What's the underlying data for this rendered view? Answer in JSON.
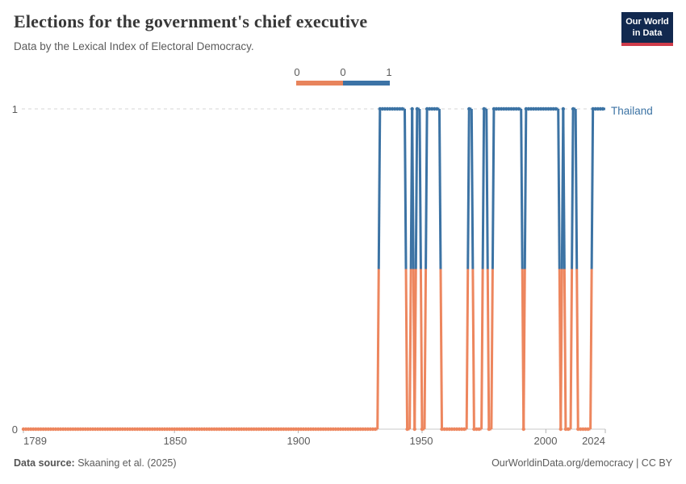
{
  "header": {
    "title": "Elections for the government's chief executive",
    "subtitle": "Data by the Lexical Index of Electoral Democracy.",
    "logo_line1": "Our World",
    "logo_line2": "in Data"
  },
  "legend": {
    "labels": [
      "0",
      "0",
      "1"
    ],
    "low_color": "#e8845c",
    "high_color": "#3c73a6"
  },
  "chart_data": {
    "type": "line",
    "subtype": "step-binary",
    "entity": "Thailand",
    "entity_color": "#3c73a4",
    "x_range": [
      1789,
      2024
    ],
    "ylim": [
      0,
      1
    ],
    "y_tick_labels": [
      "1",
      "0"
    ],
    "x_ticks": [
      1789,
      1850,
      1900,
      1950,
      2000,
      2024
    ],
    "x_tick_labels": [
      "1789",
      "1850",
      "1900",
      "1950",
      "2000",
      "2024"
    ],
    "colors": {
      "value0": "#ed865e",
      "value1": "#3c73a4"
    },
    "grid": "dashed-line-at-1",
    "legend_position": "top-center",
    "periods": [
      {
        "start": 1789,
        "end": 1932,
        "value": 0
      },
      {
        "start": 1933,
        "end": 1943,
        "value": 1
      },
      {
        "start": 1944,
        "end": 1945,
        "value": 0
      },
      {
        "start": 1946,
        "end": 1946,
        "value": 1
      },
      {
        "start": 1947,
        "end": 1947,
        "value": 0
      },
      {
        "start": 1948,
        "end": 1949,
        "value": 1
      },
      {
        "start": 1950,
        "end": 1951,
        "value": 0
      },
      {
        "start": 1952,
        "end": 1957,
        "value": 1
      },
      {
        "start": 1958,
        "end": 1968,
        "value": 0
      },
      {
        "start": 1969,
        "end": 1970,
        "value": 1
      },
      {
        "start": 1971,
        "end": 1974,
        "value": 0
      },
      {
        "start": 1975,
        "end": 1976,
        "value": 1
      },
      {
        "start": 1977,
        "end": 1978,
        "value": 0
      },
      {
        "start": 1979,
        "end": 1990,
        "value": 1
      },
      {
        "start": 1991,
        "end": 1991,
        "value": 0
      },
      {
        "start": 1992,
        "end": 2005,
        "value": 1
      },
      {
        "start": 2006,
        "end": 2006,
        "value": 0
      },
      {
        "start": 2007,
        "end": 2007,
        "value": 1
      },
      {
        "start": 2008,
        "end": 2010,
        "value": 0
      },
      {
        "start": 2011,
        "end": 2012,
        "value": 1
      },
      {
        "start": 2013,
        "end": 2018,
        "value": 0
      },
      {
        "start": 2019,
        "end": 2024,
        "value": 1
      }
    ]
  },
  "footer": {
    "source_label": "Data source:",
    "source_value": " Skaaning et al. (2025)",
    "right_text": "OurWorldinData.org/democracy | CC BY"
  }
}
